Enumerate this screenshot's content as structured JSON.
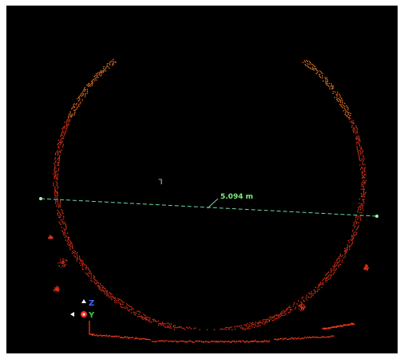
{
  "viewer": {
    "background": "#000000",
    "point_colors": [
      "#ff3a1a",
      "#ff6a1f",
      "#ff8a2a",
      "#e0301a"
    ],
    "cursor_glyph": "ᒣ"
  },
  "measurement": {
    "label": "5.094 m",
    "line_color": "#6fd9a0",
    "label_color": "#7cf07c"
  },
  "axes": {
    "z_label": "Z",
    "y_label": "Y",
    "z_color": "#3d6bff",
    "y_color": "#33cc33",
    "x_color": "#ff2a2a"
  }
}
